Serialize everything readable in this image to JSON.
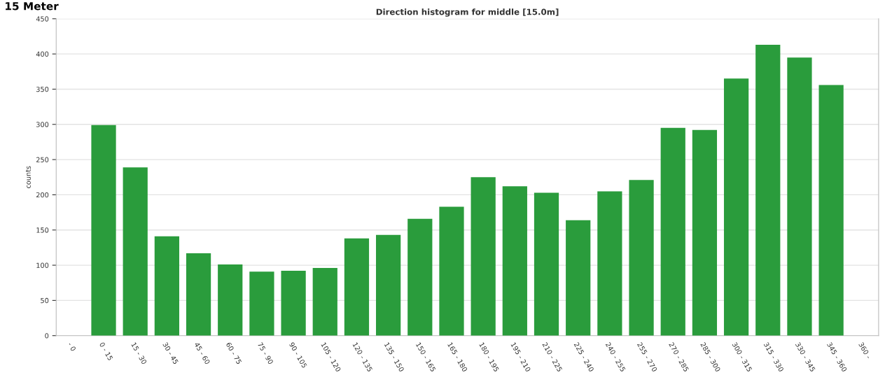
{
  "chart_data": {
    "type": "bar",
    "title": "Direction histogram for middle [15.0m]",
    "ylabel": "counts",
    "annotations": [
      "15 Meter"
    ],
    "categories": [
      "- 0",
      "0 - 15",
      "15 - 30",
      "30 - 45",
      "45 - 60",
      "60 - 75",
      "75 - 90",
      "90 - 105",
      "105 - 120",
      "120 - 135",
      "135 - 150",
      "150 - 165",
      "165 - 180",
      "180 - 195",
      "195 - 210",
      "210 - 225",
      "225 - 240",
      "240 - 255",
      "255 - 270",
      "270 - 285",
      "285 - 300",
      "300 - 315",
      "315 - 330",
      "330 - 345",
      "345 - 360",
      "360 -"
    ],
    "values": [
      0,
      299,
      239,
      141,
      117,
      101,
      91,
      92,
      96,
      138,
      143,
      166,
      183,
      225,
      212,
      203,
      164,
      205,
      221,
      295,
      292,
      365,
      413,
      395,
      356,
      0
    ],
    "color": "#2a9c3c",
    "ylim": [
      0,
      450
    ],
    "yticks": [
      0,
      50,
      100,
      150,
      200,
      250,
      300,
      350,
      400,
      450
    ],
    "grid": "y",
    "legend": false
  }
}
